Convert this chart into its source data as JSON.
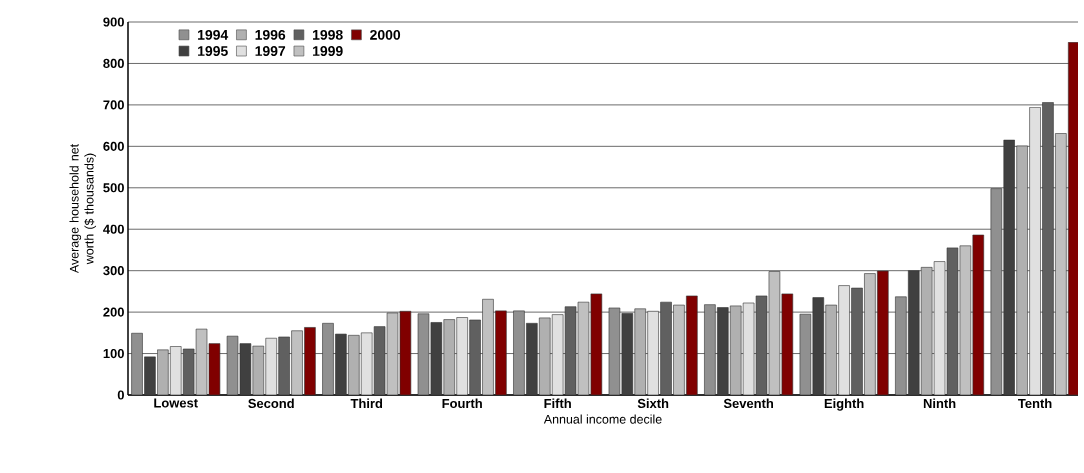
{
  "chart_data": {
    "type": "bar",
    "xlabel": "Annual income decile",
    "ylabel": "Average household net worth ($ thousands)",
    "categories": [
      "Lowest",
      "Second",
      "Third",
      "Fourth",
      "Fifth",
      "Sixth",
      "Seventh",
      "Eighth",
      "Ninth",
      "Tenth"
    ],
    "series": [
      {
        "name": "1994",
        "color": "#909090",
        "values": [
          149,
          142,
          173,
          196,
          203,
          210,
          218,
          195,
          237,
          498
        ]
      },
      {
        "name": "1995",
        "color": "#404040",
        "values": [
          92,
          124,
          147,
          175,
          173,
          197,
          211,
          235,
          300,
          615
        ]
      },
      {
        "name": "1996",
        "color": "#b0b0b0",
        "values": [
          109,
          118,
          144,
          182,
          186,
          208,
          215,
          217,
          308,
          601
        ]
      },
      {
        "name": "1997",
        "color": "#e0e0e0",
        "values": [
          117,
          137,
          150,
          187,
          194,
          202,
          222,
          264,
          322,
          694
        ]
      },
      {
        "name": "1998",
        "color": "#606060",
        "values": [
          111,
          140,
          165,
          181,
          213,
          224,
          239,
          258,
          355,
          706
        ]
      },
      {
        "name": "1999",
        "color": "#c0c0c0",
        "values": [
          159,
          155,
          198,
          231,
          224,
          217,
          298,
          293,
          360,
          631
        ]
      },
      {
        "name": "2000",
        "color": "#800000",
        "values": [
          124,
          163,
          202,
          203,
          244,
          239,
          244,
          299,
          386,
          851
        ]
      }
    ],
    "ylim": [
      0,
      900
    ],
    "yticks": [
      0,
      100,
      200,
      300,
      400,
      500,
      600,
      700,
      800,
      900
    ],
    "grid": "y",
    "legend": "top left"
  }
}
